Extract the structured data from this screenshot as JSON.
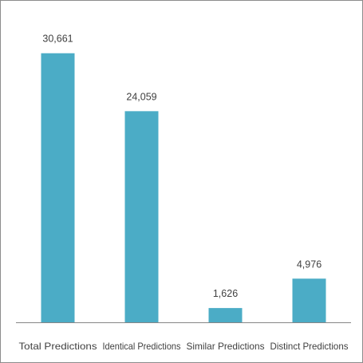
{
  "chart_data": {
    "type": "bar",
    "categories": [
      "Total Predictions",
      "Identical Predictions",
      "Similar Predictions",
      "Distinct Predictions"
    ],
    "values": [
      30661,
      24059,
      1626,
      4976
    ],
    "data_labels": [
      "30,661",
      "24,059",
      "1,626",
      "4,976"
    ],
    "title": "",
    "xlabel": "",
    "ylabel": "",
    "ylim": [
      0,
      33000
    ],
    "grid": false,
    "legend": "none",
    "colors": {
      "bar": "#4bacc6",
      "axis": "#868686",
      "text": "#404040",
      "border": "#8c8c8c"
    }
  }
}
